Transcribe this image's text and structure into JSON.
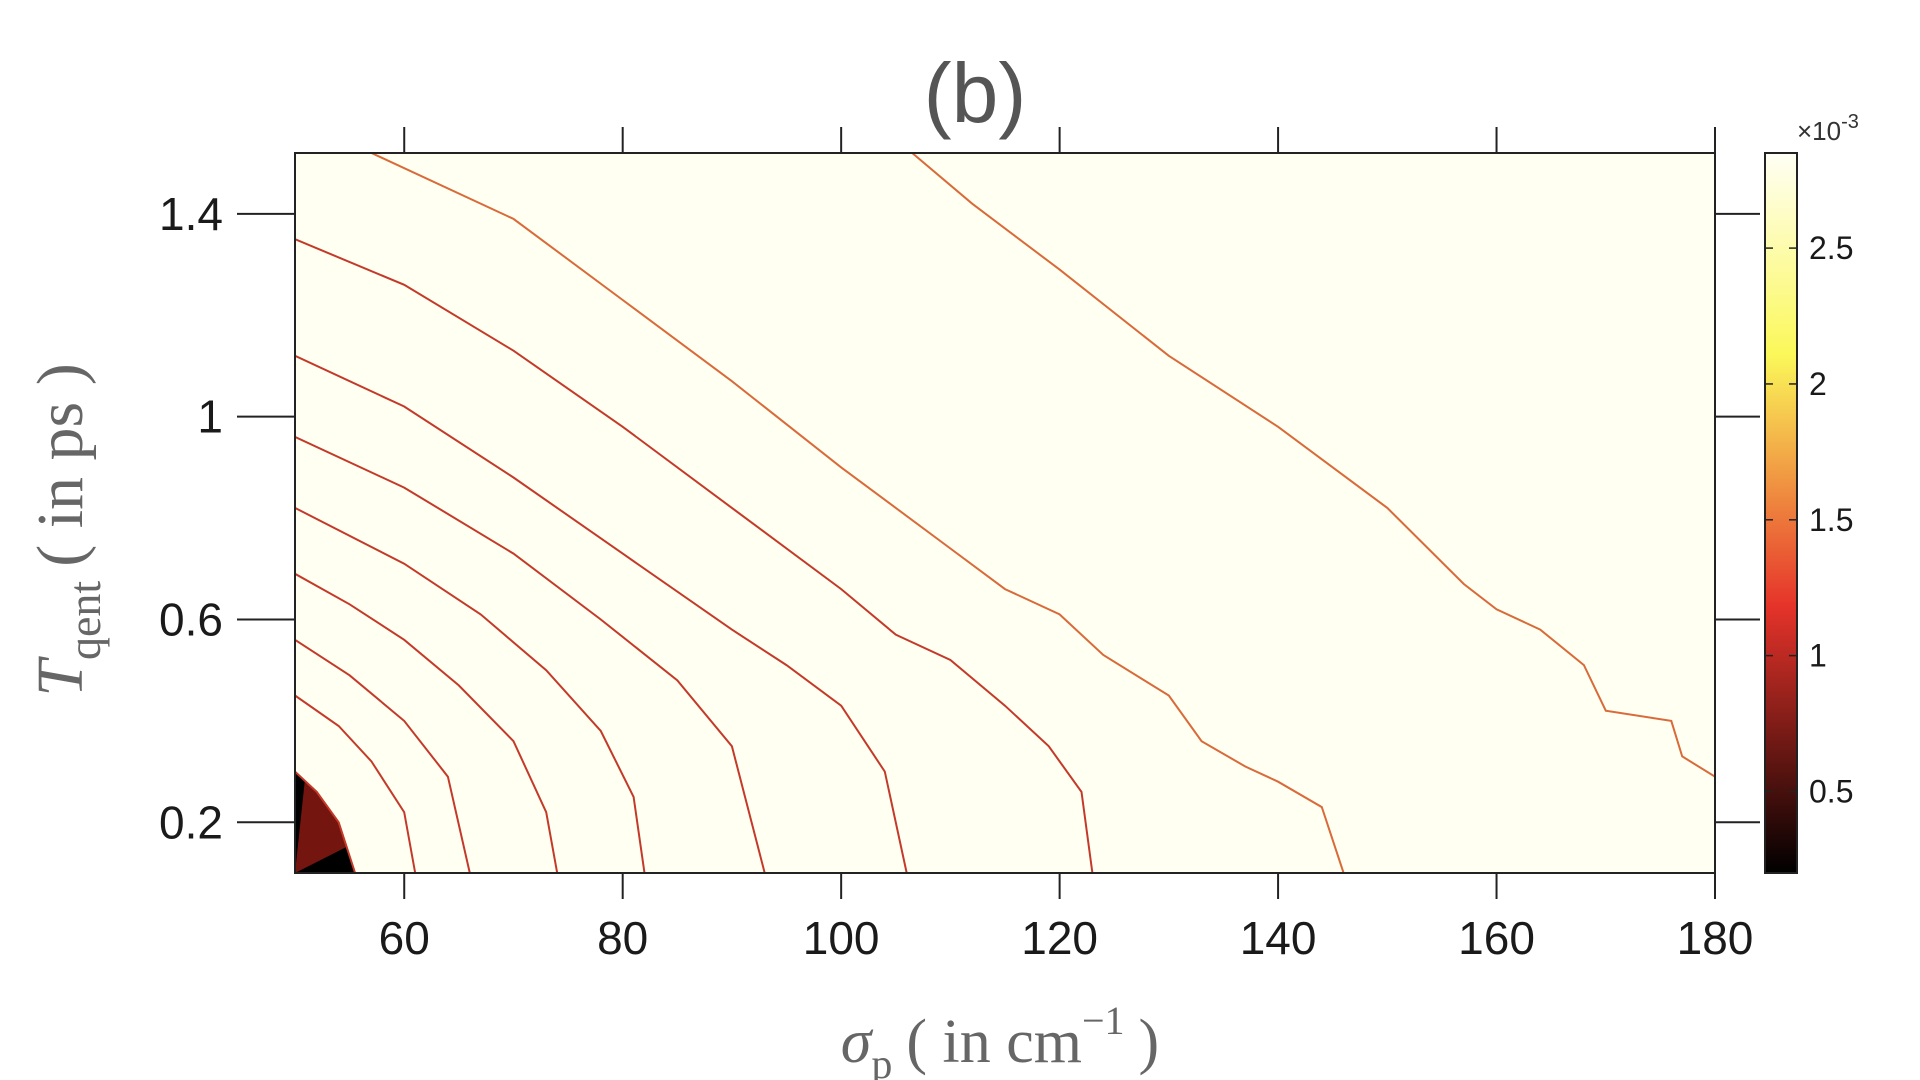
{
  "chart_data": {
    "type": "contour",
    "title": "(b)",
    "xlabel": {
      "symbol": "σ",
      "sub": "p",
      "text": "( in cm",
      "sup": "−1",
      "close": ")"
    },
    "ylabel": {
      "symbol": "T",
      "sub": "qent",
      "text": "( in ps )"
    },
    "xlim": [
      50,
      180
    ],
    "ylim": [
      0.1,
      1.52
    ],
    "xticks": [
      60,
      80,
      100,
      120,
      140,
      160,
      180
    ],
    "xtick_labels": [
      "60",
      "80",
      "100",
      "120",
      "140",
      "160",
      "180"
    ],
    "yticks": [
      0.2,
      0.6,
      1.0,
      1.4
    ],
    "ytick_labels": [
      "0.2",
      "0.6",
      "1",
      "1.4"
    ],
    "colorbar": {
      "multiplier": "×10",
      "exponent": "-3",
      "range": [
        0.2,
        2.85
      ],
      "ticks": [
        0.5,
        1,
        1.5,
        2,
        2.5
      ],
      "tick_labels": [
        "0.5",
        "1",
        "1.5",
        "2",
        "2.5"
      ],
      "colormap": "hot"
    },
    "contour_levels": [
      0.25,
      0.5,
      0.75,
      1.0,
      1.25,
      1.5,
      1.75,
      2.0,
      2.25,
      2.5
    ],
    "level_colors": [
      "#000000",
      "#3d0808",
      "#751510",
      "#b0241a",
      "#e5332a",
      "#e85e2b",
      "#ef8c34",
      "#f6cd4e",
      "#fbf85a",
      "#fcfbb0",
      "#fffff2"
    ],
    "contour_lines": [
      {
        "level": 0.25,
        "points": [
          [
            106.5,
            1.52
          ],
          [
            112,
            1.42
          ],
          [
            120,
            1.29
          ],
          [
            130,
            1.12
          ],
          [
            140,
            0.98
          ],
          [
            150,
            0.82
          ],
          [
            157,
            0.67
          ],
          [
            160,
            0.62
          ],
          [
            164,
            0.58
          ],
          [
            168,
            0.51
          ],
          [
            170,
            0.42
          ],
          [
            176,
            0.4
          ],
          [
            177,
            0.33
          ],
          [
            180,
            0.29
          ]
        ]
      },
      {
        "level": 0.5,
        "points": [
          [
            57,
            1.52
          ],
          [
            70,
            1.39
          ],
          [
            80,
            1.23
          ],
          [
            90,
            1.07
          ],
          [
            100,
            0.9
          ],
          [
            110,
            0.74
          ],
          [
            115,
            0.66
          ],
          [
            120,
            0.61
          ],
          [
            124,
            0.53
          ],
          [
            130,
            0.45
          ],
          [
            133,
            0.36
          ],
          [
            137,
            0.31
          ],
          [
            140,
            0.28
          ],
          [
            144,
            0.23
          ],
          [
            146,
            0.1
          ]
        ]
      },
      {
        "level": 0.75,
        "points": [
          [
            50,
            1.35
          ],
          [
            60,
            1.26
          ],
          [
            70,
            1.13
          ],
          [
            80,
            0.98
          ],
          [
            90,
            0.82
          ],
          [
            100,
            0.66
          ],
          [
            105,
            0.57
          ],
          [
            110,
            0.52
          ],
          [
            115,
            0.43
          ],
          [
            119,
            0.35
          ],
          [
            122,
            0.26
          ],
          [
            123,
            0.1
          ]
        ]
      },
      {
        "level": 1.0,
        "points": [
          [
            50,
            1.12
          ],
          [
            60,
            1.02
          ],
          [
            70,
            0.88
          ],
          [
            80,
            0.73
          ],
          [
            90,
            0.58
          ],
          [
            95,
            0.51
          ],
          [
            100,
            0.43
          ],
          [
            104,
            0.3
          ],
          [
            106,
            0.1
          ]
        ]
      },
      {
        "level": 1.25,
        "points": [
          [
            50,
            0.96
          ],
          [
            60,
            0.86
          ],
          [
            70,
            0.73
          ],
          [
            78,
            0.6
          ],
          [
            85,
            0.48
          ],
          [
            90,
            0.35
          ],
          [
            93,
            0.1
          ]
        ]
      },
      {
        "level": 1.5,
        "points": [
          [
            50,
            0.82
          ],
          [
            60,
            0.71
          ],
          [
            67,
            0.61
          ],
          [
            73,
            0.5
          ],
          [
            78,
            0.38
          ],
          [
            81,
            0.25
          ],
          [
            82,
            0.1
          ]
        ]
      },
      {
        "level": 1.75,
        "points": [
          [
            50,
            0.69
          ],
          [
            55,
            0.63
          ],
          [
            60,
            0.56
          ],
          [
            65,
            0.47
          ],
          [
            70,
            0.36
          ],
          [
            73,
            0.22
          ],
          [
            74,
            0.1
          ]
        ]
      },
      {
        "level": 2.0,
        "points": [
          [
            50,
            0.56
          ],
          [
            55,
            0.49
          ],
          [
            60,
            0.4
          ],
          [
            64,
            0.29
          ],
          [
            66,
            0.1
          ]
        ]
      },
      {
        "level": 2.25,
        "points": [
          [
            50,
            0.45
          ],
          [
            54,
            0.39
          ],
          [
            57,
            0.32
          ],
          [
            60,
            0.22
          ],
          [
            61,
            0.1
          ]
        ]
      },
      {
        "level": 2.5,
        "points": [
          [
            50,
            0.3
          ],
          [
            52,
            0.26
          ],
          [
            54,
            0.2
          ],
          [
            55.5,
            0.1
          ]
        ]
      }
    ]
  }
}
